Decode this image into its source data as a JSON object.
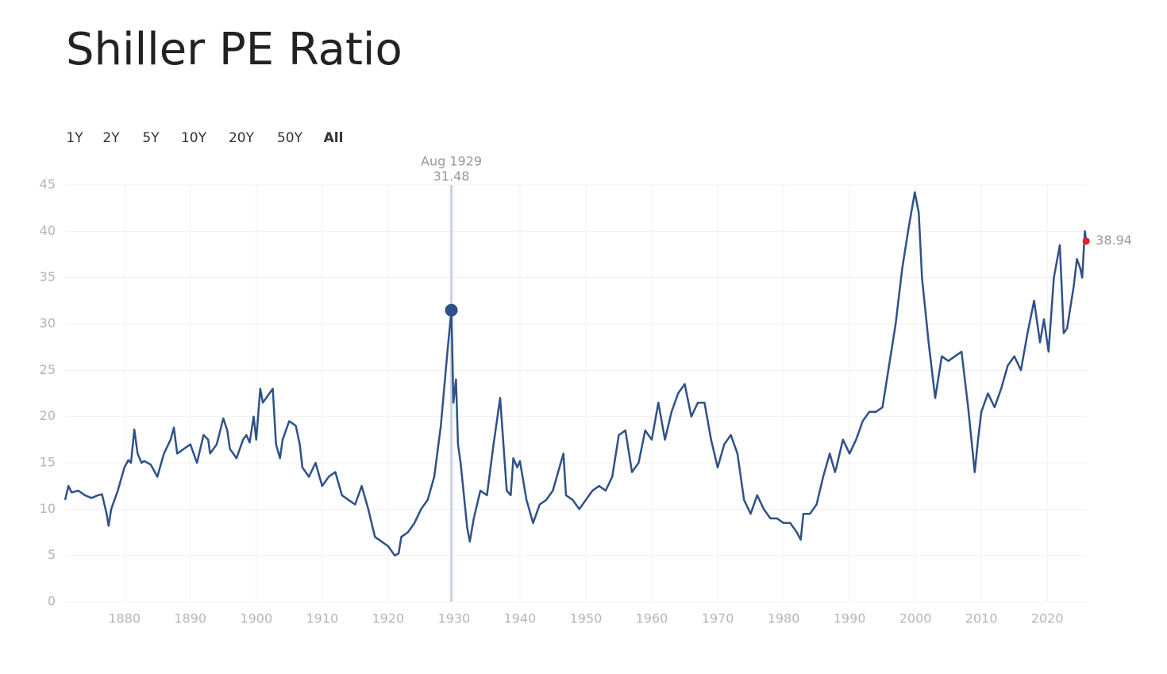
{
  "chart_data": {
    "type": "line",
    "title": "Shiller PE Ratio",
    "range_buttons": [
      {
        "label": "1Y"
      },
      {
        "label": "2Y"
      },
      {
        "label": "5Y"
      },
      {
        "label": "10Y"
      },
      {
        "label": "20Y"
      },
      {
        "label": "50Y"
      },
      {
        "label": "All",
        "active": true
      }
    ],
    "x": [
      1871,
      1871.5,
      1872,
      1873,
      1874,
      1875,
      1876,
      1876.6,
      1877.3,
      1877.6,
      1878,
      1879,
      1880,
      1880.6,
      1881,
      1881.5,
      1882,
      1882.6,
      1883,
      1884,
      1885,
      1886,
      1887,
      1887.5,
      1888,
      1889,
      1890,
      1891,
      1892,
      1892.7,
      1893,
      1894,
      1895,
      1895.6,
      1896,
      1897,
      1898,
      1898.5,
      1899,
      1899.6,
      1900,
      1900.6,
      1901,
      1902,
      1902.5,
      1903,
      1903.6,
      1904,
      1905,
      1906,
      1906.6,
      1907,
      1908,
      1909,
      1910,
      1911,
      1912,
      1913,
      1914,
      1915,
      1916,
      1917,
      1918,
      1919,
      1920,
      1921,
      1921.6,
      1922,
      1923,
      1924,
      1925,
      1926,
      1927,
      1928,
      1929,
      1929.6,
      1929.9,
      1930.3,
      1930.6,
      1931,
      1932,
      1932.4,
      1933,
      1934,
      1935,
      1936,
      1937,
      1938,
      1938.6,
      1939,
      1939.6,
      1940,
      1941,
      1942,
      1943,
      1944,
      1945,
      1946,
      1946.6,
      1947,
      1948,
      1949,
      1950,
      1951,
      1952,
      1953,
      1954,
      1955,
      1956,
      1957,
      1958,
      1959,
      1960,
      1961,
      1962,
      1963,
      1964,
      1965,
      1966,
      1967,
      1968,
      1969,
      1970,
      1971,
      1972,
      1973,
      1974,
      1975,
      1976,
      1977,
      1978,
      1979,
      1980,
      1981,
      1982,
      1982.6,
      1983,
      1984,
      1985,
      1986,
      1987,
      1987.8,
      1988,
      1989,
      1990,
      1991,
      1992,
      1993,
      1994,
      1995,
      1996,
      1997,
      1998,
      1999,
      1999.9,
      2000.5,
      2001,
      2002,
      2003,
      2004,
      2005,
      2006,
      2007,
      2008,
      2009,
      2009.5,
      2010,
      2011,
      2012,
      2013,
      2014,
      2015,
      2016,
      2017,
      2018,
      2018.9,
      2019.5,
      2020.2,
      2020.5,
      2021,
      2021.9,
      2022.5,
      2023,
      2024,
      2024.5,
      2025,
      2025.3,
      2025.7,
      2025.9
    ],
    "series": [
      {
        "name": "Shiller PE Ratio",
        "color": "#2f5188",
        "values": [
          11,
          12.5,
          11.8,
          12,
          11.5,
          11.2,
          11.5,
          11.6,
          9.5,
          8.2,
          10,
          12,
          14.5,
          15.3,
          15,
          18.6,
          16,
          15,
          15.2,
          14.8,
          13.5,
          16,
          17.5,
          18.8,
          16,
          16.5,
          17,
          15,
          18,
          17.5,
          16,
          17,
          19.8,
          18.5,
          16.5,
          15.5,
          17.5,
          18,
          17.2,
          20,
          17.5,
          23,
          21.5,
          22.5,
          23,
          17,
          15.5,
          17.5,
          19.5,
          19,
          17,
          14.5,
          13.5,
          15,
          12.5,
          13.5,
          14,
          11.5,
          11,
          10.5,
          12.5,
          10,
          7,
          6.5,
          6,
          5,
          5.2,
          7,
          7.5,
          8.5,
          10,
          11,
          13.5,
          19,
          27,
          31.48,
          21.5,
          24,
          17,
          15,
          8,
          6.5,
          9,
          12,
          11.5,
          17,
          22,
          12,
          11.5,
          15.5,
          14.5,
          15.2,
          11,
          8.5,
          10.5,
          11,
          12,
          14.5,
          16,
          11.5,
          11,
          10,
          11,
          12,
          12.5,
          12,
          13.5,
          18,
          18.5,
          14,
          15,
          18.5,
          17.5,
          21.5,
          17.5,
          20.5,
          22.5,
          23.5,
          20,
          21.5,
          21.5,
          17.5,
          14.5,
          17,
          18,
          16,
          11,
          9.5,
          11.5,
          10,
          9,
          9,
          8.5,
          8.5,
          7.5,
          6.7,
          9.5,
          9.5,
          10.5,
          13.5,
          16,
          14,
          14.5,
          17.5,
          16,
          17.5,
          19.5,
          20.5,
          20.5,
          21,
          25.5,
          30,
          36,
          40.5,
          44.2,
          42,
          35,
          28,
          22,
          26.5,
          26,
          26.5,
          27,
          21,
          14,
          17.5,
          20.5,
          22.5,
          21,
          23,
          25.5,
          26.5,
          25,
          29,
          32.5,
          28,
          30.5,
          27,
          30,
          35,
          38.5,
          29,
          29.5,
          34,
          37,
          36,
          35,
          40,
          38.94
        ]
      }
    ],
    "last_point_color": "#e0202a",
    "tooltip": {
      "label": "Aug 1929",
      "x": 1929.6
    },
    "xlim": [
      1871,
      2026
    ],
    "xticks": [
      1880,
      1890,
      1900,
      1910,
      1920,
      1930,
      1940,
      1950,
      1960,
      1970,
      1980,
      1990,
      2000,
      2010,
      2020
    ],
    "ylim": [
      0,
      45
    ],
    "yticks": [
      0,
      5,
      10,
      15,
      20,
      25,
      30,
      35,
      40,
      45
    ],
    "grid": true
  }
}
